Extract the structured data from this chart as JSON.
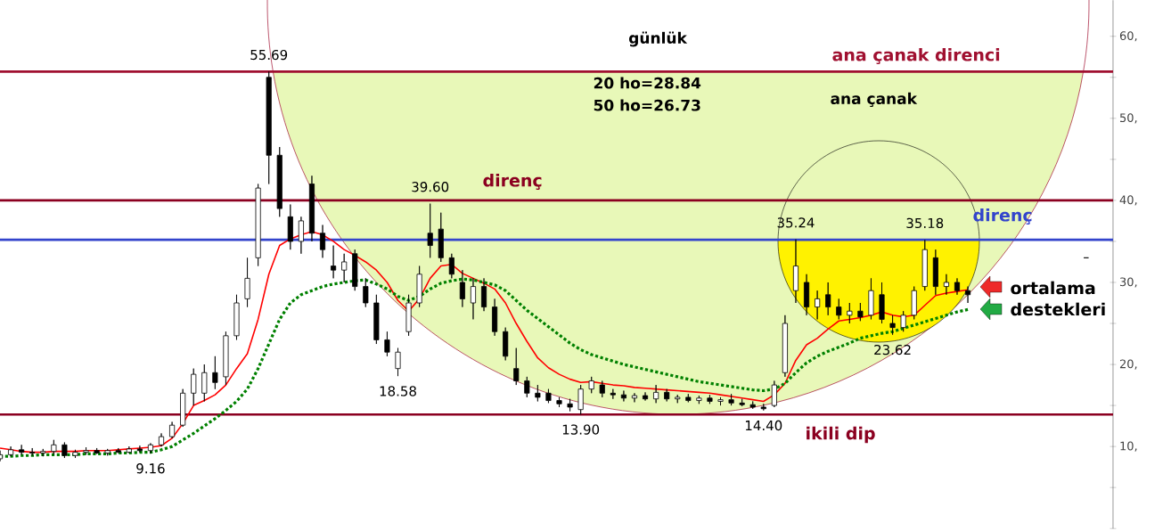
{
  "chart_data": {
    "type": "candlestick",
    "title": "günlük",
    "categories": [
      null,
      null,
      null,
      null,
      null,
      null,
      null,
      null,
      null,
      null,
      null,
      null,
      null,
      null,
      null,
      null,
      null,
      null,
      null,
      null,
      null,
      null,
      null,
      null,
      null,
      null,
      null,
      null,
      null,
      null,
      null,
      null,
      null,
      null,
      null,
      null,
      null,
      null,
      null,
      null,
      null,
      null,
      null,
      null,
      null,
      null,
      null,
      null,
      null,
      null,
      null,
      null,
      null,
      null,
      null,
      null,
      null,
      null,
      null,
      null,
      null,
      null,
      null,
      null,
      null,
      null,
      null,
      null,
      null,
      null,
      null,
      null,
      null,
      null,
      null,
      null,
      null,
      null,
      null,
      null,
      null,
      null,
      null,
      null,
      null,
      null,
      null,
      null,
      null,
      null,
      null,
      null,
      null,
      null,
      null,
      null,
      null,
      null,
      null,
      null,
      null,
      null,
      null,
      null
    ],
    "ohlc": [
      [
        8.5,
        9.5,
        8.2,
        9.0
      ],
      [
        9.0,
        10.0,
        8.8,
        9.6
      ],
      [
        9.6,
        10.2,
        9.0,
        9.3
      ],
      [
        9.3,
        9.8,
        8.9,
        9.2
      ],
      [
        9.2,
        9.7,
        8.8,
        9.4
      ],
      [
        9.4,
        10.8,
        9.0,
        10.2
      ],
      [
        10.2,
        10.5,
        8.6,
        8.9
      ],
      [
        8.9,
        9.6,
        8.6,
        9.3
      ],
      [
        9.3,
        9.9,
        9.0,
        9.5
      ],
      [
        9.5,
        9.8,
        9.1,
        9.2
      ],
      [
        9.2,
        9.7,
        8.9,
        9.5
      ],
      [
        9.5,
        9.8,
        9.2,
        9.3
      ],
      [
        9.3,
        10.0,
        9.2,
        9.7
      ],
      [
        9.7,
        10.1,
        9.3,
        9.5
      ],
      [
        9.5,
        10.4,
        9.16,
        10.2
      ],
      [
        10.2,
        11.6,
        10.0,
        11.2
      ],
      [
        11.2,
        13.0,
        11.0,
        12.6
      ],
      [
        12.6,
        17.0,
        12.4,
        16.5
      ],
      [
        16.5,
        19.5,
        15.0,
        18.8
      ],
      [
        16.5,
        20.0,
        15.5,
        19.0
      ],
      [
        19.0,
        21.0,
        17.0,
        17.8
      ],
      [
        18.5,
        24.0,
        17.5,
        23.5
      ],
      [
        23.5,
        28.5,
        23.0,
        27.5
      ],
      [
        28.0,
        33.0,
        27.0,
        30.5
      ],
      [
        33.0,
        42.0,
        32.0,
        41.5
      ],
      [
        55.0,
        55.69,
        42.0,
        45.5
      ],
      [
        45.5,
        46.5,
        38.0,
        39.0
      ],
      [
        38.0,
        39.5,
        34.0,
        35.0
      ],
      [
        35.0,
        38.0,
        33.5,
        37.5
      ],
      [
        42.0,
        43.0,
        35.0,
        36.0
      ],
      [
        36.0,
        37.0,
        33.0,
        34.0
      ],
      [
        32.0,
        34.5,
        30.5,
        31.5
      ],
      [
        31.5,
        33.5,
        30.0,
        32.5
      ],
      [
        33.5,
        34.0,
        29.0,
        29.5
      ],
      [
        29.5,
        30.5,
        27.0,
        27.5
      ],
      [
        27.5,
        28.5,
        22.5,
        23.0
      ],
      [
        23.0,
        24.0,
        21.0,
        21.5
      ],
      [
        19.5,
        22.0,
        18.58,
        21.5
      ],
      [
        24.0,
        28.5,
        23.5,
        27.5
      ],
      [
        27.5,
        32.0,
        27.0,
        31.0
      ],
      [
        36.0,
        39.6,
        33.0,
        34.5
      ],
      [
        36.5,
        38.5,
        32.5,
        33.0
      ],
      [
        33.0,
        33.5,
        30.5,
        31.0
      ],
      [
        30.0,
        31.5,
        27.0,
        28.0
      ],
      [
        27.5,
        30.5,
        25.5,
        29.5
      ],
      [
        29.5,
        30.5,
        26.5,
        27.0
      ],
      [
        27.0,
        28.0,
        23.5,
        24.0
      ],
      [
        24.0,
        24.5,
        20.5,
        21.0
      ],
      [
        19.5,
        22.0,
        17.5,
        18.0
      ],
      [
        18.0,
        18.5,
        16.0,
        16.5
      ],
      [
        16.5,
        17.5,
        15.5,
        16.0
      ],
      [
        16.5,
        17.0,
        15.3,
        15.6
      ],
      [
        15.6,
        16.0,
        14.8,
        15.2
      ],
      [
        15.2,
        15.8,
        14.3,
        14.8
      ],
      [
        14.5,
        17.5,
        13.9,
        17.0
      ],
      [
        17.0,
        18.5,
        16.5,
        18.0
      ],
      [
        17.5,
        18.0,
        16.0,
        16.5
      ],
      [
        16.5,
        17.0,
        15.8,
        16.3
      ],
      [
        16.3,
        16.8,
        15.5,
        15.9
      ],
      [
        15.9,
        16.5,
        15.4,
        16.2
      ],
      [
        16.2,
        16.6,
        15.6,
        15.8
      ],
      [
        15.8,
        17.5,
        15.3,
        16.6
      ],
      [
        16.6,
        17.0,
        15.5,
        15.8
      ],
      [
        15.8,
        16.3,
        15.3,
        16.0
      ],
      [
        16.0,
        16.4,
        15.4,
        15.6
      ],
      [
        15.6,
        16.2,
        15.2,
        15.9
      ],
      [
        15.9,
        16.3,
        15.2,
        15.5
      ],
      [
        15.5,
        16.0,
        15.0,
        15.7
      ],
      [
        15.7,
        16.4,
        15.0,
        15.3
      ],
      [
        15.3,
        15.8,
        14.9,
        15.1
      ],
      [
        15.1,
        15.5,
        14.6,
        14.8
      ],
      [
        14.8,
        15.2,
        14.4,
        14.6
      ],
      [
        15.0,
        18.0,
        14.8,
        17.5
      ],
      [
        19.0,
        26.0,
        18.5,
        25.0
      ],
      [
        29.0,
        35.24,
        27.5,
        32.0
      ],
      [
        30.0,
        31.0,
        26.0,
        27.0
      ],
      [
        27.0,
        29.0,
        25.5,
        28.0
      ],
      [
        28.5,
        30.0,
        26.0,
        27.0
      ],
      [
        27.0,
        28.0,
        25.5,
        26.0
      ],
      [
        26.0,
        27.5,
        25.0,
        26.5
      ],
      [
        26.5,
        27.5,
        25.3,
        25.8
      ],
      [
        26.0,
        30.5,
        25.5,
        29.0
      ],
      [
        28.5,
        30.0,
        25.0,
        25.5
      ],
      [
        25.0,
        26.0,
        23.62,
        24.5
      ],
      [
        24.5,
        26.5,
        24.0,
        26.0
      ],
      [
        26.0,
        29.5,
        25.5,
        29.0
      ],
      [
        29.5,
        35.18,
        29.0,
        34.0
      ],
      [
        33.0,
        34.0,
        28.5,
        29.5
      ],
      [
        29.5,
        31.0,
        28.5,
        30.0
      ],
      [
        30.0,
        30.5,
        28.5,
        29.0
      ],
      [
        29.0,
        29.5,
        27.5,
        28.5
      ],
      null,
      null,
      null,
      null,
      null,
      null,
      null,
      null,
      null,
      null,
      [
        33.0,
        33.0,
        33.0,
        33.0
      ],
      null,
      null
    ],
    "series": [
      {
        "type": "line",
        "color": "#ff0000",
        "values": [
          9.8,
          9.6,
          9.4,
          9.3,
          9.3,
          9.4,
          9.4,
          9.4,
          9.5,
          9.5,
          9.5,
          9.6,
          9.7,
          9.8,
          9.9,
          10.1,
          11.0,
          12.8,
          15.0,
          15.6,
          16.3,
          17.5,
          19.5,
          21.3,
          25.5,
          31.0,
          34.5,
          35.3,
          35.8,
          36.2,
          35.8,
          35.0,
          34.0,
          33.3,
          32.5,
          31.5,
          30.0,
          27.8,
          26.5,
          28.0,
          30.5,
          32.0,
          32.2,
          31.1,
          30.5,
          29.9,
          29.2,
          27.5,
          25.0,
          22.8,
          20.8,
          19.6,
          18.8,
          18.2,
          17.8,
          17.9,
          17.7,
          17.5,
          17.4,
          17.2,
          17.1,
          17.0,
          16.9,
          16.8,
          16.7,
          16.6,
          16.5,
          16.3,
          16.1,
          15.9,
          15.7,
          15.5,
          16.3,
          17.7,
          20.5,
          22.4,
          23.2,
          24.3,
          25.3,
          25.5,
          25.7,
          26.0,
          26.4,
          26.0,
          25.8,
          26.0,
          27.2,
          28.4,
          28.7,
          28.9,
          29.1,
          null,
          null,
          null,
          null,
          null,
          null,
          null,
          null,
          null,
          null,
          null,
          null,
          null
        ]
      },
      {
        "type": "line",
        "color": "#008000",
        "line_style": "dotted",
        "values": [
          8.8,
          8.8,
          8.9,
          8.9,
          9.0,
          9.0,
          9.0,
          9.0,
          9.1,
          9.1,
          9.1,
          9.2,
          9.2,
          9.3,
          9.3,
          9.6,
          10.0,
          10.8,
          11.6,
          12.5,
          13.4,
          14.4,
          15.5,
          17.0,
          19.5,
          22.5,
          25.5,
          27.5,
          28.5,
          29.0,
          29.5,
          29.8,
          30.0,
          30.2,
          30.3,
          29.8,
          29.2,
          28.3,
          27.8,
          28.3,
          29.2,
          29.9,
          30.2,
          30.4,
          30.3,
          30.0,
          29.7,
          29.0,
          27.8,
          26.6,
          25.6,
          24.6,
          23.6,
          22.6,
          21.8,
          21.2,
          20.8,
          20.4,
          20.0,
          19.7,
          19.4,
          19.1,
          18.8,
          18.5,
          18.2,
          17.9,
          17.7,
          17.5,
          17.3,
          17.1,
          16.9,
          16.8,
          17.0,
          17.7,
          19.0,
          20.2,
          21.0,
          21.6,
          22.1,
          22.6,
          23.2,
          23.5,
          23.8,
          24.0,
          24.4,
          24.8,
          25.2,
          25.6,
          26.0,
          26.4,
          26.7,
          null,
          null,
          null,
          null,
          null,
          null,
          null,
          null,
          null,
          null,
          null,
          null,
          null
        ]
      }
    ],
    "ylim": [
      0,
      64.4
    ],
    "yticks": [
      {
        "value": 0,
        "label": null
      },
      {
        "value": 5,
        "label": null
      },
      {
        "value": 10,
        "label": "10,"
      },
      {
        "value": 15,
        "label": null
      },
      {
        "value": 20,
        "label": "20,"
      },
      {
        "value": 25,
        "label": null
      },
      {
        "value": 30,
        "label": "30,"
      },
      {
        "value": 35,
        "label": null
      },
      {
        "value": 40,
        "label": "40,"
      },
      {
        "value": 45,
        "label": null
      },
      {
        "value": 50,
        "label": "50,"
      },
      {
        "value": 55,
        "label": null
      },
      {
        "value": 60,
        "label": "60,"
      }
    ],
    "ref_lines": [
      {
        "axis": "y",
        "value": 55.7,
        "label": "ana çanak direnci",
        "color": "#a01030"
      },
      {
        "axis": "y",
        "value": 40,
        "label": "direnç",
        "color": "#8b0020"
      },
      {
        "axis": "y",
        "value": 35.2,
        "label": "direnç",
        "color": "#3344cc"
      },
      {
        "axis": "y",
        "value": 13.9,
        "label": "ikili dip",
        "color": "#8b0020"
      }
    ],
    "annotations": [
      "20 ho=28.84",
      "50 ho=26.73",
      "ana çanak",
      "ortalama destekleri",
      {
        "text": "55.69",
        "y": 55.69
      },
      {
        "text": "39.60",
        "y": 39.6
      },
      {
        "text": "18.58",
        "y": 18.58
      },
      {
        "text": "13.90",
        "y": 13.9
      },
      {
        "text": "14.40",
        "y": 14.4
      },
      {
        "text": "9.16",
        "y": 9.16
      },
      {
        "text": "35.24",
        "y": 35.24
      },
      {
        "text": "35.18",
        "y": 35.18
      },
      {
        "text": "23.62",
        "y": 23.62
      }
    ]
  }
}
